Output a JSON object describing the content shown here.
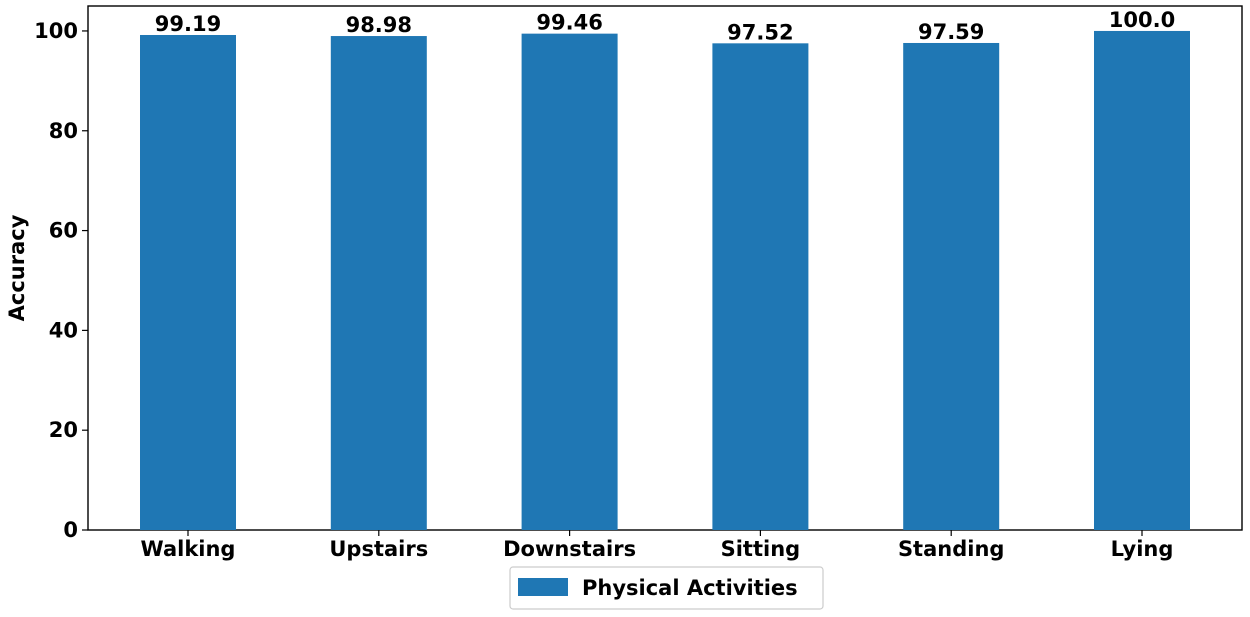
{
  "chart_data": {
    "type": "bar",
    "title": "",
    "xlabel": "",
    "ylabel": "Accuracy",
    "categories": [
      "Walking",
      "Upstairs",
      "Downstairs",
      "Sitting",
      "Standing",
      "Lying"
    ],
    "series": [
      {
        "name": "Physical Activities",
        "values": [
          99.19,
          98.98,
          99.46,
          97.52,
          97.59,
          100.0
        ],
        "value_labels": [
          "99.19",
          "98.98",
          "99.46",
          "97.52",
          "97.59",
          "100.0"
        ],
        "color": "#1f77b4"
      }
    ],
    "ylim": [
      0,
      105
    ],
    "yticks": [
      0,
      20,
      40,
      60,
      80,
      100
    ],
    "grid": false,
    "legend": {
      "placement": "bottom-center"
    }
  }
}
